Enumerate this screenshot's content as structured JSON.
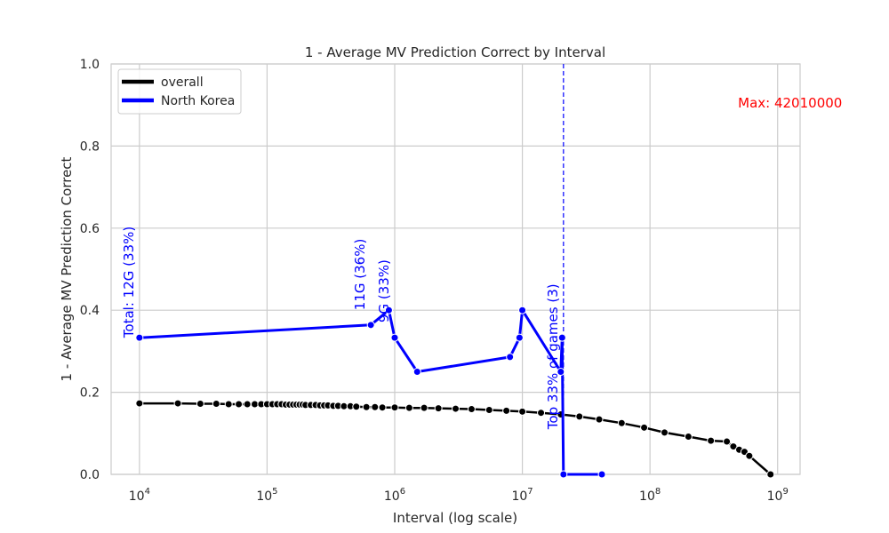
{
  "chart_data": {
    "type": "line",
    "title": "1 - Average MV Prediction Correct by Interval",
    "xlabel": "Interval (log scale)",
    "ylabel": "1 - Average MV Prediction Correct",
    "x_scale": "log",
    "xlim": [
      6000,
      1500000000
    ],
    "ylim": [
      0,
      1.0
    ],
    "grid": true,
    "legend_position": "top-left",
    "x_ticks": [
      {
        "value": 10000,
        "base": "10",
        "exp": "4"
      },
      {
        "value": 100000,
        "base": "10",
        "exp": "5"
      },
      {
        "value": 1000000,
        "base": "10",
        "exp": "6"
      },
      {
        "value": 10000000,
        "base": "10",
        "exp": "7"
      },
      {
        "value": 100000000,
        "base": "10",
        "exp": "8"
      },
      {
        "value": 1000000000,
        "base": "10",
        "exp": "9"
      }
    ],
    "y_ticks": [
      {
        "value": 0.0,
        "label": "0.0"
      },
      {
        "value": 0.2,
        "label": "0.2"
      },
      {
        "value": 0.4,
        "label": "0.4"
      },
      {
        "value": 0.6,
        "label": "0.6"
      },
      {
        "value": 0.8,
        "label": "0.8"
      },
      {
        "value": 1.0,
        "label": "1.0"
      }
    ],
    "series": [
      {
        "name": "overall",
        "color": "#000000",
        "x": [
          10000,
          20000,
          30000,
          40000,
          50000,
          60000,
          70000,
          80000,
          90000,
          100000,
          110000,
          120000,
          130000,
          140000,
          150000,
          160000,
          170000,
          180000,
          190000,
          200000,
          220000,
          240000,
          260000,
          280000,
          300000,
          330000,
          360000,
          400000,
          450000,
          500000,
          600000,
          700000,
          800000,
          1000000,
          1300000,
          1700000,
          2200000,
          3000000,
          4000000,
          5500000,
          7500000,
          10000000,
          14000000,
          20000000,
          28000000,
          40000000,
          60000000,
          90000000,
          130000000,
          200000000,
          300000000,
          400000000,
          450000000,
          500000000,
          550000000,
          600000000,
          880000000
        ],
        "values": [
          0.173,
          0.173,
          0.172,
          0.172,
          0.171,
          0.171,
          0.171,
          0.171,
          0.171,
          0.171,
          0.171,
          0.171,
          0.171,
          0.17,
          0.17,
          0.17,
          0.17,
          0.17,
          0.17,
          0.169,
          0.169,
          0.169,
          0.168,
          0.168,
          0.168,
          0.167,
          0.167,
          0.166,
          0.166,
          0.165,
          0.164,
          0.164,
          0.163,
          0.163,
          0.162,
          0.162,
          0.161,
          0.16,
          0.159,
          0.157,
          0.155,
          0.153,
          0.15,
          0.146,
          0.141,
          0.134,
          0.125,
          0.114,
          0.102,
          0.092,
          0.082,
          0.08,
          0.068,
          0.06,
          0.055,
          0.045,
          0.0
        ]
      },
      {
        "name": "North Korea",
        "color": "#0000ff",
        "x": [
          10000,
          650000,
          900000,
          1000000,
          1500000,
          8000000,
          9500000,
          10000000,
          20000000,
          20500000,
          21000000,
          42000000
        ],
        "values": [
          0.333,
          0.364,
          0.4,
          0.333,
          0.25,
          0.286,
          0.333,
          0.4,
          0.25,
          0.333,
          0.0,
          0.0
        ]
      }
    ],
    "vline": {
      "x": 21000000,
      "color": "#0000ff"
    },
    "annotations": [
      {
        "text": "Total: 12G (33%)",
        "x": 10000,
        "y": 0.333,
        "color": "#0000ff",
        "rotation": -90
      },
      {
        "text": "11G (36%)",
        "x": 650000,
        "y": 0.4,
        "color": "#0000ff",
        "rotation": -90
      },
      {
        "text": "9G (33%)",
        "x": 1000000,
        "y": 0.37,
        "color": "#0000ff",
        "rotation": -90
      },
      {
        "text": "Top 33% of games (3)",
        "x": 21000000,
        "y": 0.11,
        "color": "#0000ff",
        "rotation": -90
      },
      {
        "text": "Max: 42010000",
        "x": 900000000,
        "y": 0.905,
        "color": "#ff0000",
        "rotation": 0
      }
    ]
  }
}
